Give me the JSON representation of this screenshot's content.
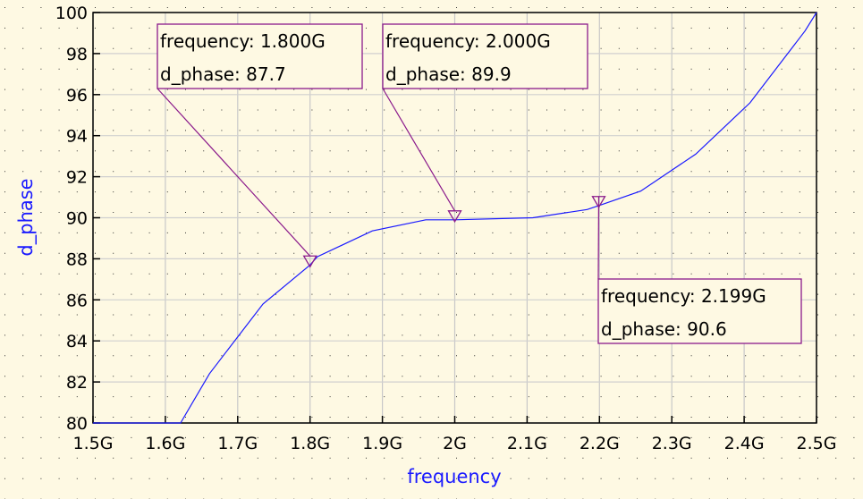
{
  "chart_data": {
    "type": "line",
    "xlabel": "frequency",
    "ylabel": "d_phase",
    "xlim": [
      1.5,
      2.5
    ],
    "ylim": [
      80,
      100
    ],
    "x_ticks": [
      "1.5G",
      "1.6G",
      "1.7G",
      "1.8G",
      "1.9G",
      "2G",
      "2.1G",
      "2.2G",
      "2.3G",
      "2.4G",
      "2.5G"
    ],
    "y_ticks": [
      "80",
      "82",
      "84",
      "86",
      "88",
      "90",
      "92",
      "94",
      "96",
      "98",
      "100"
    ],
    "grid": true,
    "series_color": "#1a1aff",
    "marker_color": "#8b1a8b",
    "series": [
      {
        "x": [
          1.5,
          1.621,
          1.661,
          1.735,
          1.8,
          1.81,
          1.886,
          1.96,
          2.0,
          2.108,
          2.183,
          2.2,
          2.257,
          2.333,
          2.408,
          2.484,
          2.5
        ],
        "y": [
          80,
          80,
          82.4,
          85.8,
          87.7,
          88.1,
          89.36,
          89.9,
          89.9,
          90.0,
          90.4,
          90.6,
          91.3,
          93.1,
          95.6,
          99.1,
          100
        ]
      }
    ],
    "markers": [
      {
        "x": 1.8,
        "y": 87.7,
        "line1": "frequency: 1.800G",
        "line2": "d_phase: 87.7"
      },
      {
        "x": 2.0,
        "y": 89.9,
        "line1": "frequency: 2.000G",
        "line2": "d_phase: 89.9"
      },
      {
        "x": 2.199,
        "y": 90.6,
        "line1": "frequency: 2.199G",
        "line2": "d_phase: 90.6"
      }
    ]
  }
}
